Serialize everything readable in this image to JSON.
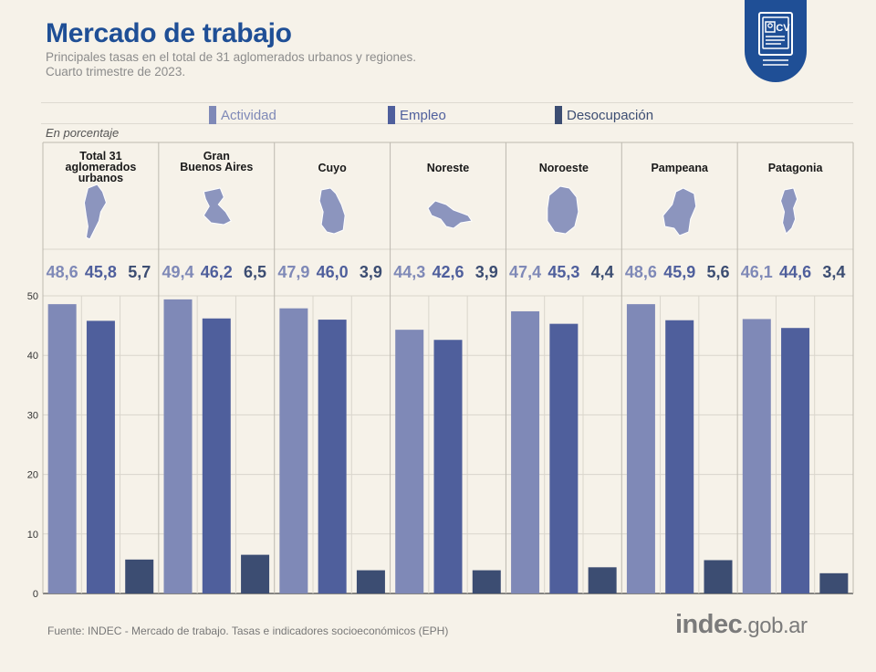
{
  "header": {
    "title": "Mercado de trabajo",
    "subtitle_line1": "Principales tasas en el total de 31 aglomerados urbanos y regiones.",
    "subtitle_line2": "Cuarto trimestre de 2023.",
    "badge_icon": "cv-document-icon",
    "badge_text": "CV"
  },
  "unit_label": "En porcentaje",
  "footer": {
    "source": "Fuente: INDEC - Mercado de trabajo. Tasas e indicadores socioeconómicos (EPH)",
    "logo_main": "indec",
    "logo_suffix": ".gob.ar"
  },
  "colors": {
    "actividad": "#7f89b7",
    "empleo": "#4f5f9c",
    "desocupacion": "#3c4d72",
    "title": "#1f4f96",
    "background": "#f6f2e9"
  },
  "chart_data": {
    "type": "bar",
    "categories": [
      "Total 31 aglomerados urbanos",
      "Gran Buenos Aires",
      "Cuyo",
      "Noreste",
      "Noroeste",
      "Pampeana",
      "Patagonia"
    ],
    "series": [
      {
        "name": "Actividad",
        "values": [
          48.6,
          49.4,
          47.9,
          44.3,
          47.4,
          48.6,
          46.1
        ]
      },
      {
        "name": "Empleo",
        "values": [
          45.8,
          46.2,
          46.0,
          42.6,
          45.3,
          45.9,
          44.6
        ]
      },
      {
        "name": "Desocupación",
        "values": [
          5.7,
          6.5,
          3.9,
          3.9,
          4.4,
          5.6,
          3.4
        ]
      }
    ],
    "value_labels": [
      [
        "48,6",
        "45,8",
        "5,7"
      ],
      [
        "49,4",
        "46,2",
        "6,5"
      ],
      [
        "47,9",
        "46,0",
        "3,9"
      ],
      [
        "44,3",
        "42,6",
        "3,9"
      ],
      [
        "47,4",
        "45,3",
        "4,4"
      ],
      [
        "48,6",
        "45,9",
        "5,6"
      ],
      [
        "46,1",
        "44,6",
        "3,4"
      ]
    ],
    "category_label_lines": [
      [
        "Total 31",
        "aglomerados",
        "urbanos"
      ],
      [
        "Gran",
        "Buenos Aires"
      ],
      [
        "Cuyo"
      ],
      [
        "Noreste"
      ],
      [
        "Noroeste"
      ],
      [
        "Pampeana"
      ],
      [
        "Patagonia"
      ]
    ],
    "region_icons": [
      "argentina-map-icon",
      "gba-map-icon",
      "cuyo-map-icon",
      "noreste-map-icon",
      "noroeste-map-icon",
      "pampeana-map-icon",
      "patagonia-map-icon"
    ],
    "yticks": [
      "0",
      "10",
      "20",
      "30",
      "40",
      "50"
    ],
    "ytick_values": [
      0,
      10,
      20,
      30,
      40,
      50
    ],
    "ylim": [
      0,
      50
    ],
    "grid": true,
    "legend_position": "top"
  }
}
